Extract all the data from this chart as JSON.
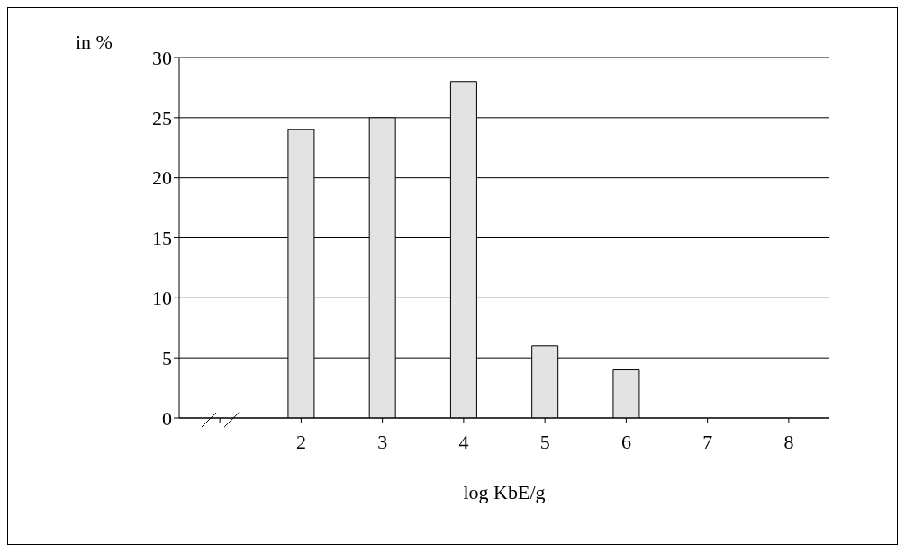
{
  "chart_data": {
    "type": "bar",
    "xlabel": "log KbE/g",
    "ylabel": "in %",
    "categories": [
      null,
      "2",
      "3",
      "4",
      "5",
      "6",
      "7",
      "8"
    ],
    "values": [
      null,
      24,
      25,
      28,
      6,
      4,
      0,
      0
    ],
    "color": "#e3e3e3",
    "ylim": [
      0,
      30
    ],
    "yticks": [
      0,
      5,
      10,
      15,
      20,
      25,
      30
    ],
    "grid": "y"
  }
}
